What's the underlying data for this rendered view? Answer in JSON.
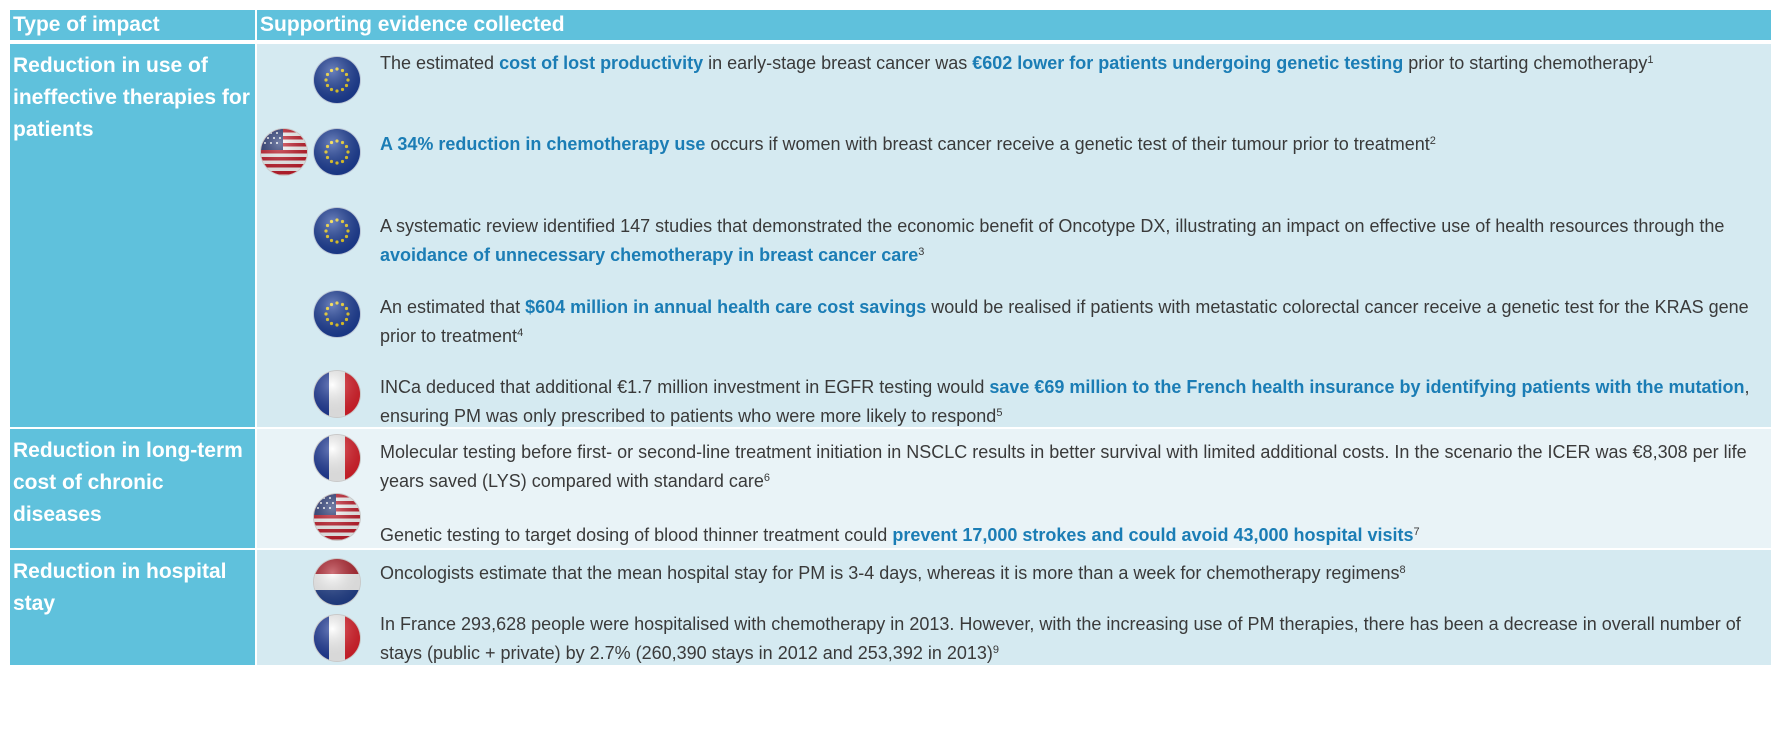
{
  "header": [
    "Type of impact",
    "Supporting evidence collected"
  ],
  "rows": [
    {
      "impact": "Reduction in use of ineffective therapies for patients",
      "entries": [
        {
          "segments": [
            {
              "text": "The estimated ",
              "bold": false
            },
            {
              "text": "cost of lost productivity",
              "bold": true
            },
            {
              "text": " in early-stage breast cancer was ",
              "bold": false
            },
            {
              "text": "€602 lower for patients undergoing genetic testing",
              "bold": true
            },
            {
              "text": " prior to starting chemotherapy",
              "bold": false
            }
          ],
          "ref": "1"
        },
        {
          "segments": [
            {
              "text": "A 34% reduction in chemotherapy use",
              "bold": true
            },
            {
              "text": " occurs if women with breast cancer receive a genetic test of their tumour prior to treatment",
              "bold": false
            }
          ],
          "ref": "2"
        },
        {
          "segments": [
            {
              "text": "A systematic review identified 147 studies that demonstrated the economic benefit of Oncotype DX, illustrating an impact on effective use of health resources through the ",
              "bold": false
            },
            {
              "text": "avoidance of unnecessary chemotherapy in breast cancer care",
              "bold": true
            }
          ],
          "ref": "3"
        },
        {
          "segments": [
            {
              "text": "An estimated that ",
              "bold": false
            },
            {
              "text": "$604 million in annual health care cost savings",
              "bold": true
            },
            {
              "text": " would be realised if patients with metastatic colorectal cancer receive a genetic test for the KRAS gene prior to treatment",
              "bold": false
            }
          ],
          "ref": "4"
        },
        {
          "segments": [
            {
              "text": "INCa deduced that additional €1.7 million investment in EGFR testing would ",
              "bold": false
            },
            {
              "text": "save €69 million to the French health insurance by identifying patients with the mutation",
              "bold": true
            },
            {
              "text": ", ensuring PM was only prescribed to patients who were more likely to respond",
              "bold": false
            }
          ],
          "ref": "5"
        }
      ]
    },
    {
      "impact": "Reduction in long-term cost of chronic diseases",
      "entries": [
        {
          "segments": [
            {
              "text": "Molecular testing before first- or second-line treatment initiation in NSCLC results in better survival with limited additional costs. In the scenario the ICER was €8,308 per life years saved (LYS) compared with standard care",
              "bold": false
            }
          ],
          "ref": "6"
        },
        {
          "segments": [
            {
              "text": "Genetic testing to target dosing of blood thinner treatment could ",
              "bold": false
            },
            {
              "text": "prevent 17,000 strokes and could avoid 43,000 hospital visits",
              "bold": true
            }
          ],
          "ref": "7"
        }
      ]
    },
    {
      "impact": "Reduction in hospital stay",
      "entries": [
        {
          "segments": [
            {
              "text": "Oncologists estimate that the mean hospital stay for PM is 3-4 days, whereas it is more than a week for chemotherapy regimens",
              "bold": false
            }
          ],
          "ref": "8"
        },
        {
          "segments": [
            {
              "text": "In France 293,628 people were hospitalised with chemotherapy in 2013. However, with the increasing use of PM therapies, there has been a decrease in overall number of stays (public + private) by 2.7% (260,390 stays in 2012 and 253,392 in 2013)",
              "bold": false
            }
          ],
          "ref": "9"
        }
      ]
    }
  ]
}
